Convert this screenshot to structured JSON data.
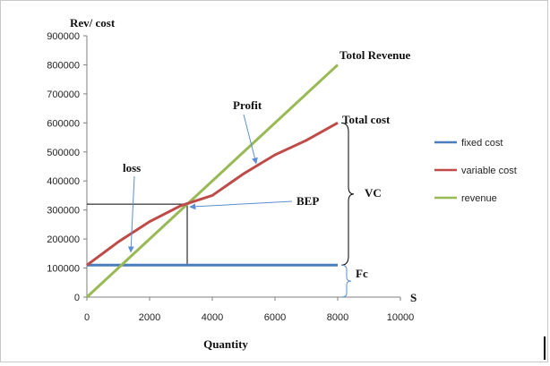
{
  "chart_data": {
    "type": "line",
    "ylabel": "Rev/ cost",
    "xlabel": "Quantity",
    "x_axis_end_label": "S",
    "xlim": [
      0,
      10000
    ],
    "ylim": [
      0,
      900000
    ],
    "x_ticks": [
      0,
      2000,
      4000,
      6000,
      8000,
      10000
    ],
    "y_ticks": [
      0,
      100000,
      200000,
      300000,
      400000,
      500000,
      600000,
      700000,
      800000,
      900000
    ],
    "series": [
      {
        "name": "fixed cost",
        "color": "#4a7ebb",
        "x": [
          0,
          8000
        ],
        "y": [
          110000,
          110000
        ]
      },
      {
        "name": "variable cost",
        "color": "#be4b48",
        "x": [
          0,
          1000,
          2000,
          3000,
          4000,
          5000,
          6000,
          7000,
          8000
        ],
        "y": [
          110000,
          190000,
          260000,
          315000,
          350000,
          425000,
          490000,
          540000,
          600000
        ]
      },
      {
        "name": "revenue",
        "color": "#98b954",
        "x": [
          0,
          8000
        ],
        "y": [
          0,
          800000
        ]
      }
    ],
    "legend_position": "right",
    "annotations": {
      "total_revenue": "Totol Revenue",
      "total_cost": "Total cost",
      "profit": "Profit",
      "loss": "loss",
      "bep": "BEP",
      "vc": "VC",
      "fc": "Fc"
    },
    "bep": {
      "x": 3200,
      "y": 320000
    },
    "profit_arrow_target": {
      "x": 5400,
      "y": 460000
    },
    "loss_arrow_target": {
      "x": 1400,
      "y": 155000
    }
  }
}
